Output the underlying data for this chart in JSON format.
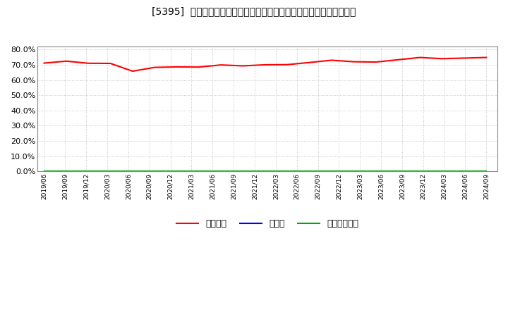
{
  "title": "[5395]  自己資本、のれん、繰延税金資産の総資産に対する比率の推移",
  "background_color": "#ffffff",
  "plot_bg_color": "#ffffff",
  "grid_color": "#bbbbbb",
  "ylim": [
    0.0,
    0.82
  ],
  "yticks": [
    0.0,
    0.1,
    0.2,
    0.3,
    0.4,
    0.5,
    0.6,
    0.7,
    0.8
  ],
  "ytick_labels": [
    "0.0%",
    "10.0%",
    "20.0%",
    "30.0%",
    "40.0%",
    "50.0%",
    "60.0%",
    "70.0%",
    "80.0%"
  ],
  "legend_labels": [
    "自己資本",
    "のれん",
    "繰延税金資産"
  ],
  "legend_colors": [
    "#ff0000",
    "#0000ff",
    "#00aa00"
  ],
  "dates": [
    "2019/06",
    "2019/09",
    "2019/12",
    "2020/03",
    "2020/06",
    "2020/09",
    "2020/12",
    "2021/03",
    "2021/06",
    "2021/09",
    "2021/12",
    "2022/03",
    "2022/06",
    "2022/09",
    "2022/12",
    "2023/03",
    "2023/06",
    "2023/09",
    "2023/12",
    "2024/03",
    "2024/06"
  ],
  "xtick_labels": [
    "2019/06",
    "2019/09",
    "2019/12",
    "2020/03",
    "2020/06",
    "2020/09",
    "2020/12",
    "2021/03",
    "2021/06",
    "2021/09",
    "2021/12",
    "2022/03",
    "2022/06",
    "2022/09",
    "2022/12",
    "2023/03",
    "2023/06",
    "2023/09",
    "2023/12",
    "2024/03",
    "2024/06",
    "2024/09"
  ],
  "equity_ratio": [
    0.711,
    0.724,
    0.71,
    0.709,
    0.658,
    0.683,
    0.686,
    0.685,
    0.699,
    0.693,
    0.7,
    0.701,
    0.715,
    0.73,
    0.72,
    0.718,
    0.733,
    0.748,
    0.74,
    0.744,
    0.748
  ],
  "goodwill_ratio": [
    0.0,
    0.0,
    0.0,
    0.0,
    0.0,
    0.0,
    0.0,
    0.0,
    0.0,
    0.0,
    0.0,
    0.0,
    0.0,
    0.0,
    0.0,
    0.0,
    0.0,
    0.0,
    0.0,
    0.0,
    0.0
  ],
  "deferred_tax_ratio": [
    0.0,
    0.0,
    0.0,
    0.0,
    0.0,
    0.0,
    0.0,
    0.0,
    0.0,
    0.0,
    0.0,
    0.0,
    0.0,
    0.0,
    0.0,
    0.0,
    0.0,
    0.0,
    0.0,
    0.0,
    0.0
  ]
}
